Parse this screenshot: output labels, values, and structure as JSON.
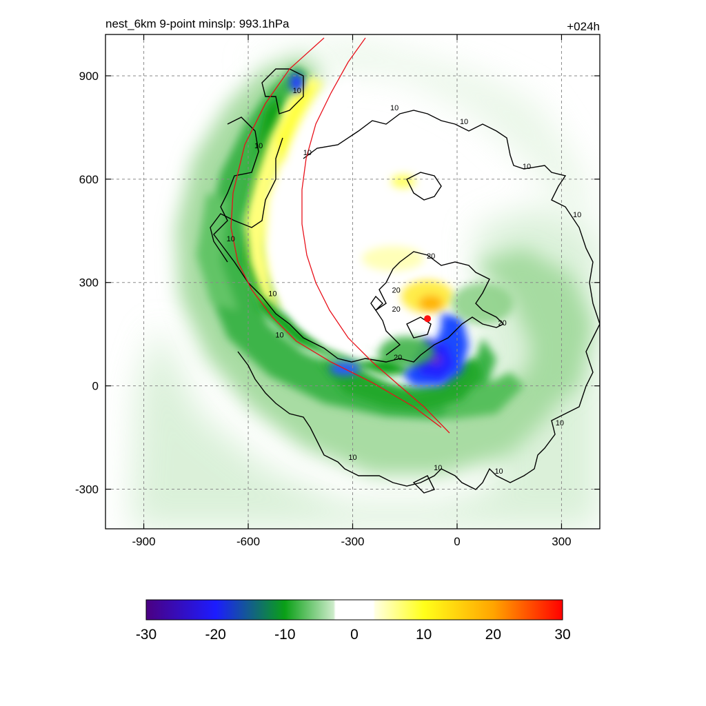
{
  "chart_data": {
    "type": "heatmap",
    "title_left": "nest_6km  9-point minslp: 993.1hPa",
    "title_right": "+024h",
    "xlabel": "",
    "ylabel": "",
    "xlim": [
      -1010,
      410
    ],
    "ylim": [
      -415,
      1020
    ],
    "x_ticks": [
      -900,
      -600,
      -300,
      0,
      300
    ],
    "y_ticks": [
      -300,
      0,
      300,
      600,
      900
    ],
    "grid": true,
    "colorbar": {
      "min": -30,
      "max": 30,
      "tick_values": [
        -30,
        -20,
        -10,
        0,
        10,
        20,
        30
      ],
      "colors": [
        "#4b0082",
        "#1c1cff",
        "#0aa016",
        "#ffffff",
        "#ffff1a",
        "#ffa500",
        "#ff0000"
      ]
    },
    "contour_labels": [
      {
        "text": "10",
        "x": -460,
        "y": 850
      },
      {
        "text": "10",
        "x": -570,
        "y": 690
      },
      {
        "text": "10",
        "x": -430,
        "y": 670
      },
      {
        "text": "10",
        "x": -180,
        "y": 800
      },
      {
        "text": "10",
        "x": 20,
        "y": 760
      },
      {
        "text": "10",
        "x": 200,
        "y": 630
      },
      {
        "text": "10",
        "x": 345,
        "y": 490
      },
      {
        "text": "20",
        "x": -75,
        "y": 370
      },
      {
        "text": "20",
        "x": -175,
        "y": 270
      },
      {
        "text": "20",
        "x": -175,
        "y": 215
      },
      {
        "text": "20",
        "x": 130,
        "y": 175
      },
      {
        "text": "10",
        "x": -650,
        "y": 420
      },
      {
        "text": "10",
        "x": -530,
        "y": 260
      },
      {
        "text": "10",
        "x": -510,
        "y": 140
      },
      {
        "text": "20",
        "x": -170,
        "y": 75
      },
      {
        "text": "10",
        "x": -300,
        "y": -215
      },
      {
        "text": "10",
        "x": -55,
        "y": -245
      },
      {
        "text": "10",
        "x": 120,
        "y": -255
      },
      {
        "text": "10",
        "x": 295,
        "y": -115
      }
    ],
    "center_marker": {
      "x": -85,
      "y": 195
    }
  }
}
